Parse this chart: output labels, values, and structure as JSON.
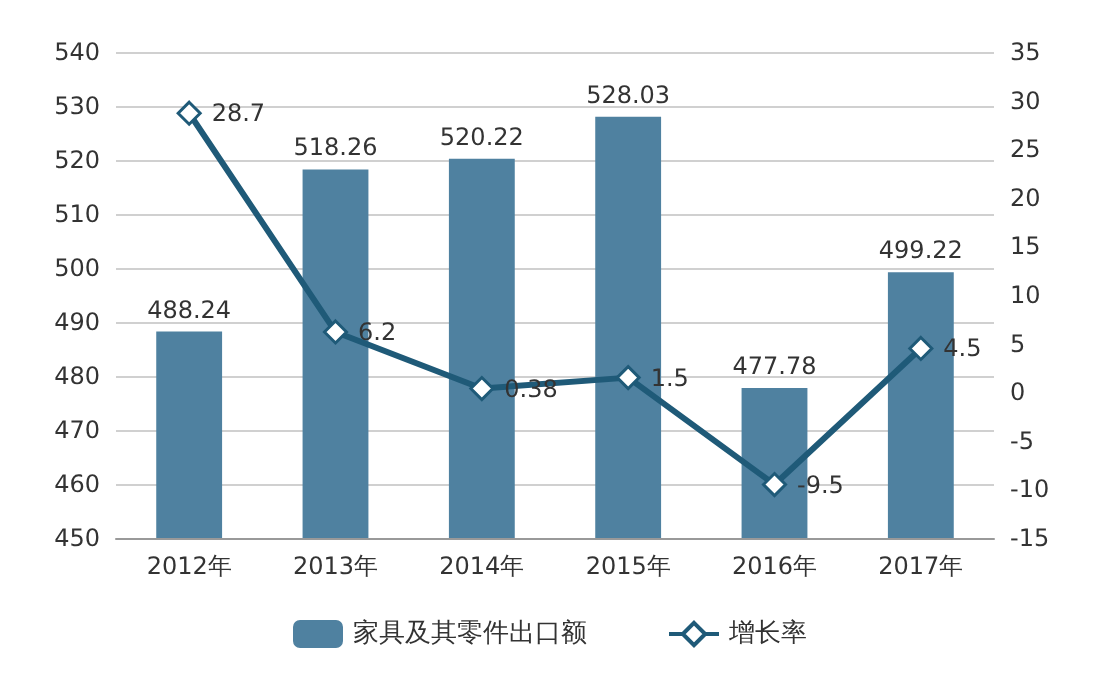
{
  "chart_data": {
    "type": "bar",
    "categories": [
      "2012年",
      "2013年",
      "2014年",
      "2015年",
      "2016年",
      "2017年"
    ],
    "series": [
      {
        "name": "家具及其零件出口额",
        "color": "#4f81a0",
        "values": [
          488.24,
          518.26,
          520.22,
          528.03,
          477.78,
          499.22
        ]
      },
      {
        "name": "增长率",
        "type": "line",
        "axis": "y2",
        "color": "#1f5a78",
        "values": [
          28.7,
          6.2,
          0.38,
          1.5,
          -9.5,
          4.5
        ]
      }
    ],
    "ylim": [
      450,
      540
    ],
    "yticks": [
      450,
      460,
      470,
      480,
      490,
      500,
      510,
      520,
      530,
      540
    ],
    "y2lim": [
      -15,
      35
    ],
    "y2ticks": [
      -15,
      -10,
      -5,
      0,
      5,
      10,
      15,
      20,
      25,
      30,
      35
    ],
    "grid": "y",
    "legend": "bottom",
    "marker": "diamond",
    "line_style": "solid",
    "data_labels": true
  }
}
